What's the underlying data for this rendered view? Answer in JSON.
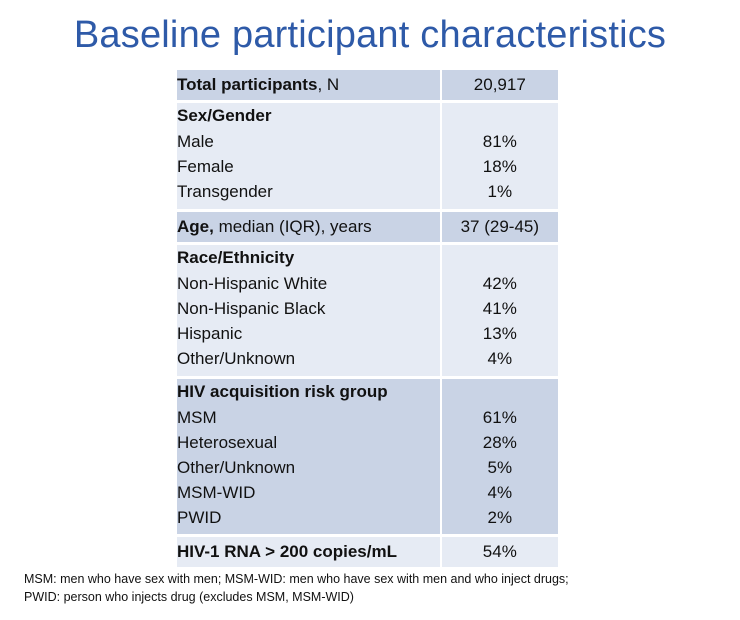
{
  "title": "Baseline participant characteristics",
  "table": {
    "total": {
      "label_bold": "Total participants",
      "label_rest": ", N",
      "value": "20,917"
    },
    "sex": {
      "header": "Sex/Gender",
      "rows": [
        {
          "label": "Male",
          "value": "81%"
        },
        {
          "label": "Female",
          "value": "18%"
        },
        {
          "label": "Transgender",
          "value": "1%"
        }
      ]
    },
    "age": {
      "label_bold": "Age,",
      "label_rest": " median (IQR), years",
      "value": "37 (29-45)"
    },
    "race": {
      "header": "Race/Ethnicity",
      "rows": [
        {
          "label": "Non-Hispanic White",
          "value": "42%"
        },
        {
          "label": "Non-Hispanic Black",
          "value": "41%"
        },
        {
          "label": "Hispanic",
          "value": "13%"
        },
        {
          "label": "Other/Unknown",
          "value": "4%"
        }
      ]
    },
    "risk": {
      "header": "HIV acquisition risk group",
      "rows": [
        {
          "label": "MSM",
          "value": "61%"
        },
        {
          "label": "Heterosexual",
          "value": "28%"
        },
        {
          "label": "Other/Unknown",
          "value": "5%"
        },
        {
          "label": "MSM-WID",
          "value": "4%"
        },
        {
          "label": "PWID",
          "value": "2%"
        }
      ]
    },
    "rna": {
      "label": "HIV-1 RNA > 200 copies/mL",
      "value": "54%"
    }
  },
  "footnote": {
    "line1": "MSM: men who have sex with men; MSM-WID: men who have sex with men and who inject drugs;",
    "line2": "PWID: person who injects drug (excludes MSM, MSM-WID)"
  }
}
